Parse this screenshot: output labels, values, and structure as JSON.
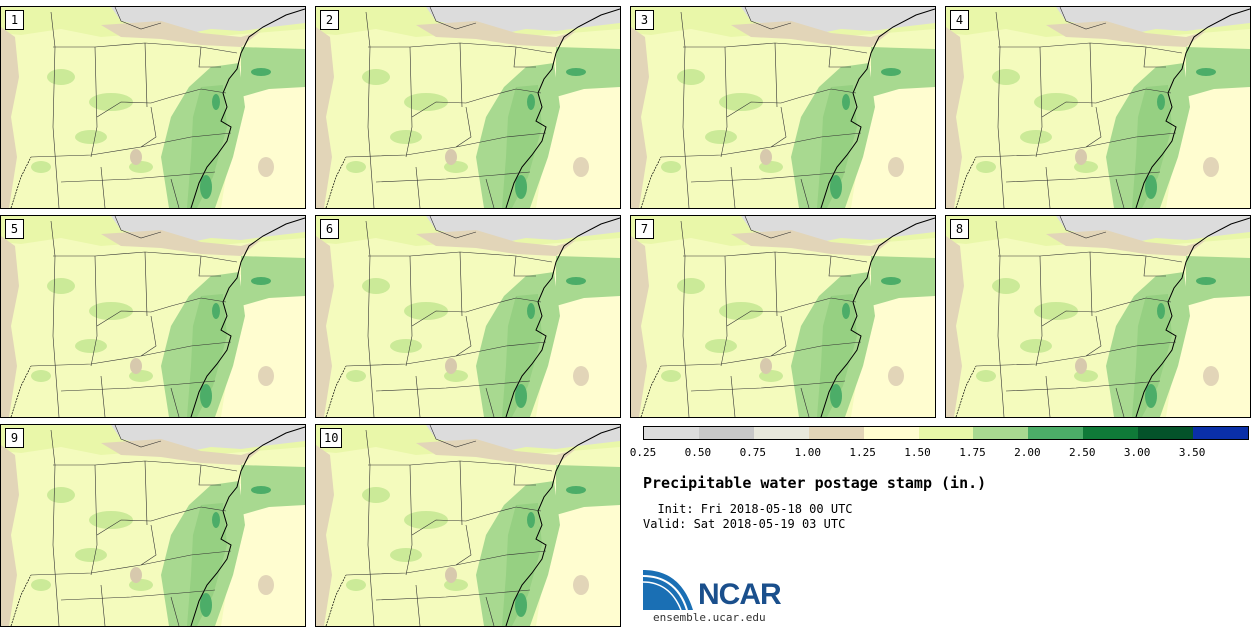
{
  "panels": [
    {
      "label": "1"
    },
    {
      "label": "2"
    },
    {
      "label": "3"
    },
    {
      "label": "4"
    },
    {
      "label": "5"
    },
    {
      "label": "6"
    },
    {
      "label": "7"
    },
    {
      "label": "8"
    },
    {
      "label": "9"
    },
    {
      "label": "10"
    }
  ],
  "colorbar": {
    "colors": [
      "#dcdcdc",
      "#c8c8c8",
      "#e8e8dc",
      "#e2d5b8",
      "#fffdd0",
      "#e8f7a8",
      "#a8d990",
      "#4cad68",
      "#0f7a38",
      "#04532a",
      "#0a2fa8"
    ],
    "ticks": [
      "0.25",
      "0.50",
      "0.75",
      "1.00",
      "1.25",
      "1.50",
      "1.75",
      "2.00",
      "2.50",
      "3.00",
      "3.50"
    ]
  },
  "title": "Precipitable water postage stamp (in.)",
  "init": "  Init: Fri 2018-05-18 00 UTC",
  "valid": "Valid: Sat 2018-05-19 03 UTC",
  "logo": {
    "name": "NCAR",
    "url": "ensemble.ucar.edu"
  }
}
